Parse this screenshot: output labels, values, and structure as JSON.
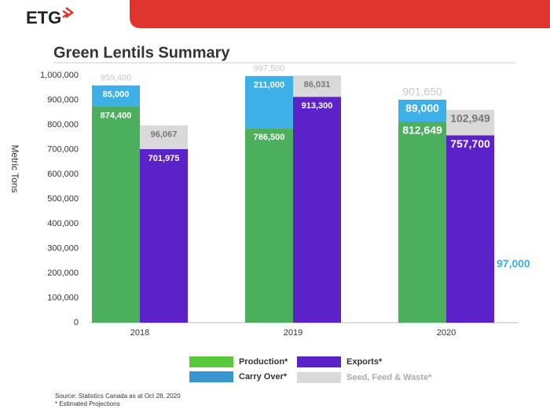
{
  "header": {
    "logo": "ETG"
  },
  "chart_data": {
    "type": "stacked-bar-pair",
    "title": "Green Lentils Summary",
    "y_label": "Metric Tons",
    "categories": [
      "2018",
      "2019",
      "2020"
    ],
    "series": [
      {
        "name": "Production*",
        "stack": "supply",
        "color": "#4caf5e",
        "legend_color": "#5ac83c",
        "values": [
          874400,
          786500,
          812649
        ],
        "value_labels": [
          "874,400",
          "786,500",
          "812,649"
        ]
      },
      {
        "name": "Carry Over*",
        "stack": "supply",
        "color": "#3eb0e8",
        "legend_color": "#3a96d0",
        "values": [
          85000,
          211000,
          89000
        ],
        "value_labels": [
          "85,000",
          "211,000",
          "89,000"
        ]
      },
      {
        "name": "Exports*",
        "stack": "use",
        "color": "#5a22c8",
        "legend_color": "#5a22c8",
        "values": [
          701975,
          913300,
          757700
        ],
        "value_labels": [
          "701,975",
          "913,300",
          "757,700"
        ]
      },
      {
        "name": "Seed, Feed & Waste*",
        "stack": "use",
        "color": "#d9d9d9",
        "legend_color": "#d9d9d9",
        "values": [
          96067,
          86031,
          102949
        ],
        "value_labels": [
          "96,067",
          "86,031",
          "102,949"
        ]
      }
    ],
    "totals": {
      "values": [
        959400,
        997500,
        901650
      ],
      "value_labels": [
        "959,400",
        "997,500",
        "901,650"
      ]
    },
    "annotation": "97,000",
    "ylim": [
      0,
      1000000
    ],
    "yticks": [
      0,
      {
        "value": 100000,
        "label": "100,000"
      },
      {
        "value": 200000,
        "label": "200,000"
      },
      {
        "value": 300000,
        "label": "300,000"
      },
      {
        "value": 400000,
        "label": "400,000"
      },
      {
        "value": 500000,
        "label": "500,000"
      },
      {
        "value": 600000,
        "label": "600,000"
      },
      {
        "value": 700000,
        "label": "700,000"
      },
      {
        "value": 800000,
        "label": "800,000"
      },
      {
        "value": 900000,
        "label": "900,000"
      },
      {
        "value": 1000000,
        "label": "1,000,000"
      }
    ],
    "source": "Source: Statistics Canada  as at Oct 28, 2020",
    "footnote": "* Estimated Projections"
  }
}
